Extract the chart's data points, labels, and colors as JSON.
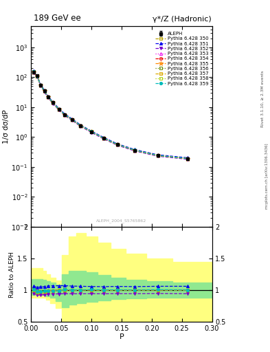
{
  "title": "189 GeV ee",
  "title_right": "γ*/Z (Hadronic)",
  "ylabel_main": "1/σ dσ/dP",
  "ylabel_ratio": "Ratio to ALEPH",
  "xlabel": "P",
  "right_label": "Rivet 3.1.10, ≥ 2.3M events",
  "right_label2": "mcplots.cern.ch [arXiv:1306.3436]",
  "watermark": "ALEPH_2004_S5765862",
  "xlim": [
    0,
    0.3
  ],
  "ylim_main": [
    0.001,
    5000
  ],
  "ylim_ratio": [
    0.5,
    2.0
  ],
  "aleph_x": [
    0.004,
    0.01,
    0.016,
    0.022,
    0.028,
    0.036,
    0.046,
    0.056,
    0.068,
    0.082,
    0.1,
    0.12,
    0.143,
    0.172,
    0.21,
    0.26
  ],
  "aleph_y": [
    150,
    110,
    55,
    35,
    22,
    14,
    8.5,
    5.5,
    3.8,
    2.4,
    1.5,
    0.92,
    0.56,
    0.36,
    0.24,
    0.19
  ],
  "aleph_yerr": [
    12,
    8,
    4,
    2.5,
    1.5,
    1.0,
    0.6,
    0.4,
    0.27,
    0.17,
    0.11,
    0.065,
    0.04,
    0.026,
    0.017,
    0.014
  ],
  "pythia_x": [
    0.004,
    0.01,
    0.016,
    0.022,
    0.028,
    0.036,
    0.046,
    0.056,
    0.068,
    0.082,
    0.1,
    0.12,
    0.143,
    0.172,
    0.21,
    0.26
  ],
  "py350_y": [
    152,
    108,
    54,
    34.5,
    22.2,
    14.1,
    8.55,
    5.55,
    3.82,
    2.41,
    1.51,
    0.925,
    0.563,
    0.361,
    0.241,
    0.19
  ],
  "py351_y": [
    160,
    115,
    58,
    37,
    23.5,
    15.0,
    9.1,
    5.9,
    4.05,
    2.55,
    1.59,
    0.975,
    0.594,
    0.381,
    0.255,
    0.202
  ],
  "py352_y": [
    143,
    102,
    51,
    32.5,
    20.8,
    13.2,
    8.02,
    5.21,
    3.59,
    2.27,
    1.42,
    0.871,
    0.531,
    0.341,
    0.228,
    0.18
  ],
  "py353_y": [
    151,
    107,
    54,
    34.4,
    22.1,
    14.0,
    8.52,
    5.53,
    3.81,
    2.41,
    1.51,
    0.921,
    0.561,
    0.36,
    0.241,
    0.19
  ],
  "py354_y": [
    151,
    107,
    54,
    34.4,
    22.1,
    14.0,
    8.52,
    5.53,
    3.81,
    2.41,
    1.51,
    0.921,
    0.561,
    0.36,
    0.241,
    0.19
  ],
  "py355_y": [
    151,
    107,
    54,
    34.4,
    22.1,
    14.0,
    8.52,
    5.53,
    3.81,
    2.41,
    1.51,
    0.921,
    0.561,
    0.36,
    0.241,
    0.19
  ],
  "py356_y": [
    152,
    108,
    54,
    34.5,
    22.2,
    14.1,
    8.55,
    5.55,
    3.82,
    2.41,
    1.51,
    0.925,
    0.563,
    0.361,
    0.241,
    0.19
  ],
  "py357_y": [
    151,
    107,
    54,
    34.4,
    22.1,
    14.0,
    8.52,
    5.53,
    3.81,
    2.41,
    1.51,
    0.921,
    0.561,
    0.36,
    0.241,
    0.19
  ],
  "py358_y": [
    151,
    107,
    54,
    34.4,
    22.1,
    14.0,
    8.52,
    5.53,
    3.81,
    2.41,
    1.51,
    0.921,
    0.561,
    0.36,
    0.241,
    0.19
  ],
  "py359_y": [
    152,
    108,
    54.2,
    34.6,
    22.2,
    14.1,
    8.56,
    5.56,
    3.83,
    2.42,
    1.515,
    0.928,
    0.565,
    0.362,
    0.242,
    0.191
  ],
  "band_yellow_lo": [
    0.88,
    0.88,
    0.88,
    0.88,
    0.85,
    0.8,
    0.72,
    0.52,
    0.52,
    0.52,
    0.52,
    0.52,
    0.52,
    0.52,
    0.52,
    0.52
  ],
  "band_yellow_hi": [
    1.35,
    1.35,
    1.35,
    1.3,
    1.25,
    1.2,
    1.15,
    1.55,
    1.85,
    1.9,
    1.85,
    1.75,
    1.65,
    1.58,
    1.5,
    1.45
  ],
  "band_green_lo": [
    0.93,
    0.93,
    0.93,
    0.93,
    0.91,
    0.88,
    0.83,
    0.73,
    0.78,
    0.8,
    0.82,
    0.84,
    0.86,
    0.87,
    0.88,
    0.88
  ],
  "band_green_hi": [
    1.18,
    1.18,
    1.18,
    1.16,
    1.14,
    1.12,
    1.09,
    1.25,
    1.3,
    1.3,
    1.28,
    1.24,
    1.2,
    1.17,
    1.14,
    1.12
  ],
  "ratio_350_y": [
    1.013,
    0.982,
    0.982,
    0.986,
    0.991,
    0.993,
    0.994,
    1.009,
    1.005,
    1.004,
    1.007,
    1.005,
    1.005,
    1.003,
    1.004,
    1.0
  ],
  "ratio_351_y": [
    1.065,
    1.045,
    1.055,
    1.057,
    1.068,
    1.072,
    1.071,
    1.073,
    1.066,
    1.063,
    1.06,
    1.057,
    1.061,
    1.058,
    1.063,
    1.063
  ],
  "ratio_352_y": [
    0.953,
    0.927,
    0.927,
    0.929,
    0.941,
    0.943,
    0.943,
    0.947,
    0.945,
    0.946,
    0.947,
    0.946,
    0.948,
    0.947,
    0.95,
    0.947
  ],
  "ratio_353_y": [
    1.007,
    0.973,
    0.982,
    0.983,
    0.995,
    0.997,
    1.0,
    1.005,
    1.003,
    1.004,
    1.007,
    1.001,
    1.002,
    1.0,
    1.004,
    1.0
  ],
  "ratio_354_y": [
    1.007,
    0.973,
    0.982,
    0.983,
    0.995,
    0.997,
    1.0,
    1.005,
    1.003,
    1.004,
    1.007,
    1.001,
    1.002,
    1.0,
    1.004,
    1.0
  ],
  "ratio_355_y": [
    1.007,
    0.973,
    0.982,
    0.983,
    0.995,
    0.997,
    1.0,
    1.005,
    1.003,
    1.004,
    1.007,
    1.001,
    1.002,
    1.0,
    1.004,
    1.0
  ],
  "ratio_356_y": [
    1.013,
    0.982,
    0.982,
    0.986,
    0.991,
    0.993,
    0.994,
    1.009,
    1.005,
    1.004,
    1.007,
    1.005,
    1.005,
    1.003,
    1.004,
    1.0
  ],
  "ratio_357_y": [
    1.007,
    0.973,
    0.982,
    0.983,
    0.995,
    0.997,
    1.0,
    1.005,
    1.003,
    1.004,
    1.007,
    1.001,
    1.002,
    1.0,
    1.004,
    1.0
  ],
  "ratio_358_y": [
    1.007,
    0.973,
    0.982,
    0.983,
    0.995,
    0.997,
    1.0,
    1.005,
    1.003,
    1.004,
    1.007,
    1.001,
    1.002,
    1.0,
    1.004,
    1.0
  ],
  "ratio_359_y": [
    1.013,
    0.982,
    0.984,
    0.988,
    0.993,
    0.995,
    0.996,
    1.011,
    1.007,
    1.006,
    1.009,
    1.007,
    1.007,
    1.005,
    1.008,
    1.005
  ],
  "color_350": "#b8a000",
  "color_351": "#0000ee",
  "color_352": "#7700cc",
  "color_353": "#ee00ee",
  "color_354": "#ee0000",
  "color_355": "#ff8800",
  "color_356": "#668800",
  "color_357": "#ddaa00",
  "color_358": "#aacc00",
  "color_359": "#00bbbb",
  "ls_350": "--",
  "ls_351": "--",
  "ls_352": "--",
  "ls_353": ":",
  "ls_354": "--",
  "ls_355": "--",
  "ls_356": ":",
  "ls_357": "--",
  "ls_358": ":",
  "ls_359": "--"
}
